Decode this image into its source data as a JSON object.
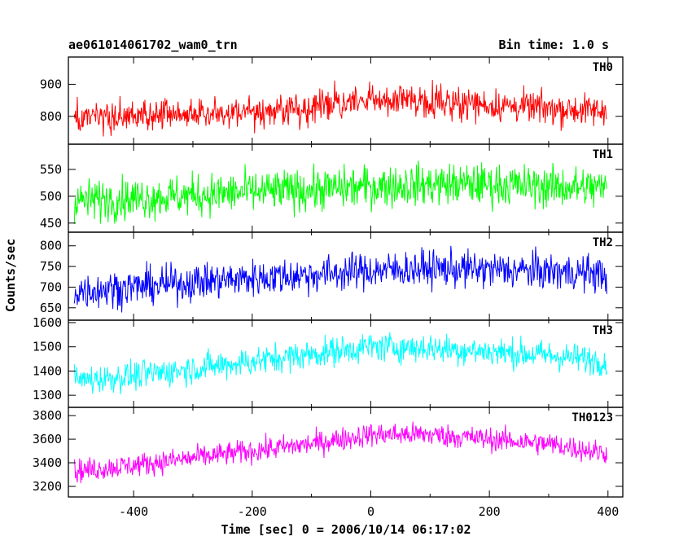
{
  "header": {
    "title": "ae061014061702_wam0_trn",
    "bin_time": "Bin time: 1.0 s"
  },
  "axes": {
    "ylabel": "Counts/sec",
    "xlabel": "Time [sec] 0 = 2006/10/14 06:17:02",
    "x_ticks": [
      "-400",
      "-200",
      "0",
      "200",
      "400"
    ]
  },
  "chart_data": {
    "type": "line",
    "xlabel": "Time [sec] 0 = 2006/10/14 06:17:02",
    "ylabel": "Counts/sec",
    "xlim": [
      -510,
      425
    ],
    "x_range": [
      -500,
      398
    ],
    "bin_time_s": 1.0,
    "grid": false,
    "panels": [
      {
        "name": "TH0",
        "color": "#ff0000",
        "ylim": [
          713,
          985
        ],
        "y_ticks": [
          800,
          900
        ],
        "noise": 45,
        "trend": {
          "x": [
            -500,
            -400,
            -300,
            -200,
            -100,
            0,
            100,
            200,
            300,
            398
          ],
          "y": [
            790,
            798,
            808,
            815,
            828,
            850,
            850,
            835,
            825,
            815
          ]
        }
      },
      {
        "name": "TH1",
        "color": "#00ff00",
        "ylim": [
          433,
          597
        ],
        "y_ticks": [
          450,
          500,
          550
        ],
        "noise": 35,
        "trend": {
          "x": [
            -500,
            -400,
            -300,
            -200,
            -100,
            0,
            100,
            200,
            300,
            398
          ],
          "y": [
            492,
            496,
            502,
            508,
            512,
            518,
            522,
            522,
            518,
            515
          ]
        }
      },
      {
        "name": "TH2",
        "color": "#0000ff",
        "ylim": [
          620,
          833
        ],
        "y_ticks": [
          650,
          700,
          750,
          800
        ],
        "noise": 40,
        "trend": {
          "x": [
            -500,
            -400,
            -300,
            -200,
            -100,
            0,
            100,
            200,
            300,
            398
          ],
          "y": [
            690,
            700,
            712,
            722,
            730,
            740,
            745,
            742,
            738,
            732
          ]
        }
      },
      {
        "name": "TH3",
        "color": "#00ffff",
        "ylim": [
          1250,
          1610
        ],
        "y_ticks": [
          1300,
          1400,
          1500,
          1600
        ],
        "noise": 55,
        "trend": {
          "x": [
            -500,
            -400,
            -300,
            -200,
            -100,
            0,
            100,
            200,
            300,
            398
          ],
          "y": [
            1360,
            1380,
            1410,
            1440,
            1470,
            1500,
            1495,
            1480,
            1465,
            1440
          ]
        }
      },
      {
        "name": "TH0123",
        "color": "#ff00ff",
        "ylim": [
          3110,
          3870
        ],
        "y_ticks": [
          3200,
          3400,
          3600,
          3800
        ],
        "noise": 90,
        "trend": {
          "x": [
            -500,
            -400,
            -300,
            -200,
            -100,
            0,
            100,
            200,
            300,
            398
          ],
          "y": [
            3330,
            3380,
            3440,
            3500,
            3560,
            3640,
            3640,
            3600,
            3560,
            3480
          ]
        }
      }
    ]
  }
}
